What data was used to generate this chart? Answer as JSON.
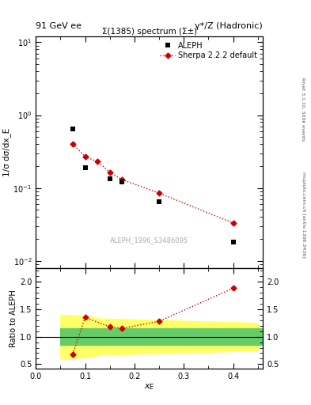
{
  "title_left": "91 GeV ee",
  "title_right": "γ*/Z (Hadronic)",
  "plot_title": "Σ(1385) spectrum (Σ±)",
  "right_label_top": "Rivet 3.1.10, 500k events",
  "right_label_bottom": "mcplots.cern.ch [arXiv:1306.3436]",
  "watermark": "ALEPH_1996_S3486095",
  "ylabel_main": "1/σ dσ/dx_E",
  "ylabel_ratio": "Ratio to ALEPH",
  "aleph_x": [
    0.075,
    0.1,
    0.15,
    0.175,
    0.25,
    0.4
  ],
  "aleph_y": [
    0.65,
    0.19,
    0.135,
    0.12,
    0.065,
    0.018
  ],
  "sherpa_x": [
    0.075,
    0.1,
    0.125,
    0.15,
    0.175,
    0.25,
    0.4
  ],
  "sherpa_y": [
    0.4,
    0.27,
    0.23,
    0.165,
    0.13,
    0.085,
    0.033
  ],
  "ratio_x": [
    0.075,
    0.1,
    0.15,
    0.175,
    0.25,
    0.4
  ],
  "ratio_y": [
    0.68,
    1.35,
    1.18,
    1.15,
    1.28,
    1.88
  ],
  "yellow_x": [
    0.05,
    0.11,
    0.13,
    0.45
  ],
  "yellow_lo": [
    0.6,
    0.63,
    0.67,
    0.75
  ],
  "yellow_hi": [
    1.4,
    1.37,
    1.33,
    1.25
  ],
  "green_lo": 0.85,
  "green_hi": 1.15,
  "xlim": [
    0.0,
    0.46
  ],
  "ylim_main": [
    0.008,
    12.0
  ],
  "ylim_ratio": [
    0.42,
    2.25
  ],
  "bg_color": "#ffffff",
  "aleph_color": "#000000",
  "sherpa_color": "#cc0000",
  "green_color": "#66cc66",
  "yellow_color": "#ffff66"
}
